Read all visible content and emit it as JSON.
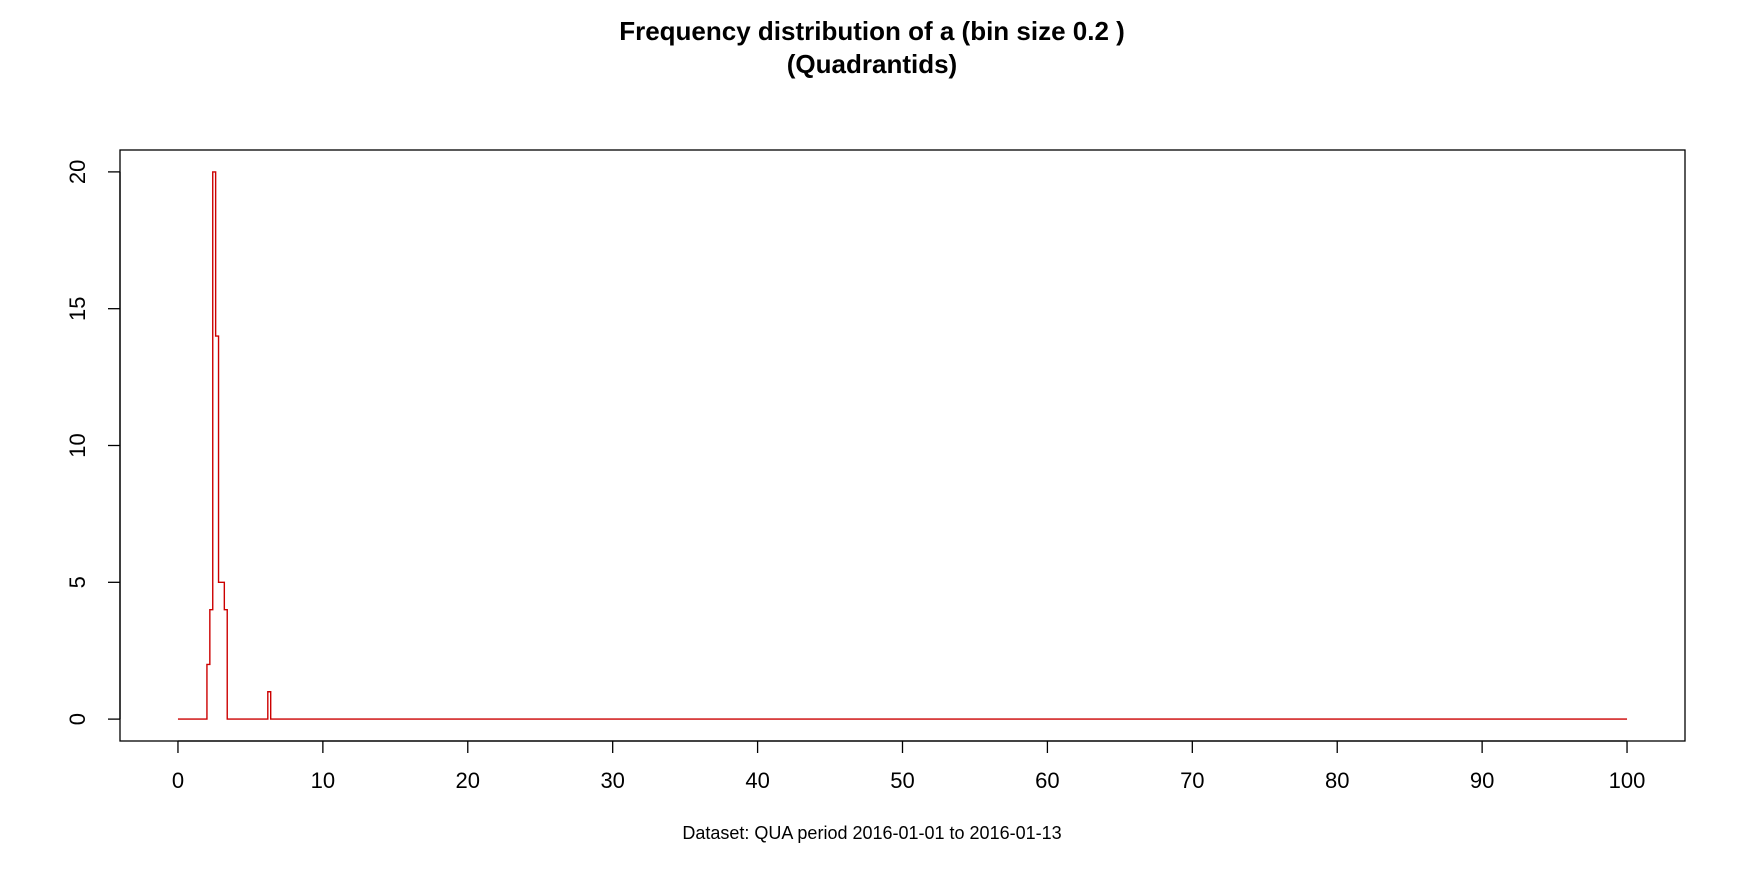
{
  "chart_data": {
    "type": "line",
    "line_style": "step",
    "title": "Frequency distribution of a (bin size 0.2 )",
    "subtitle": "(Quadrantids)",
    "xlabel": "Dataset: QUA period 2016-01-01 to 2016-01-13",
    "ylabel": "",
    "xlim": [
      -4,
      104
    ],
    "ylim": [
      -0.8,
      20.8
    ],
    "x_ticks": [
      0,
      10,
      20,
      30,
      40,
      50,
      60,
      70,
      80,
      90,
      100
    ],
    "y_ticks": [
      0,
      5,
      10,
      15,
      20
    ],
    "grid": false,
    "series_color": "#cc0000",
    "x": [
      0,
      2.0,
      2.2,
      2.4,
      2.6,
      2.8,
      3.0,
      3.2,
      3.4,
      6.2,
      6.4,
      100
    ],
    "y": [
      0,
      2,
      4,
      20,
      14,
      5,
      5,
      4,
      0,
      1,
      0,
      0
    ]
  }
}
